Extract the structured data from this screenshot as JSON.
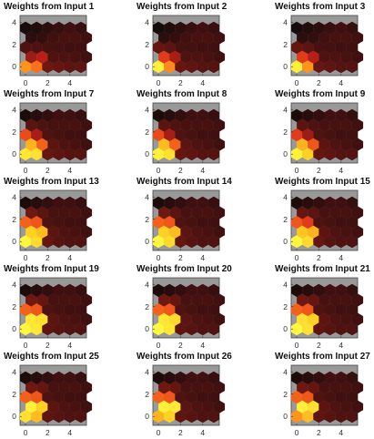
{
  "figure": {
    "background": "#ffffff",
    "plot_background": "#999999",
    "colormap": [
      "#0b0b0b",
      "#3a0f0f",
      "#7a1a12",
      "#d4201c",
      "#ff7a1a",
      "#ffcc22",
      "#ffff44"
    ]
  },
  "chart_data": [
    {
      "type": "heatmap",
      "grid": "hexagonal",
      "title": "Weights from Input 1",
      "x_ticks": [
        "0",
        "2",
        "4"
      ],
      "y_ticks": [
        "0",
        "2",
        "4"
      ],
      "xlim": [
        -0.5,
        5.5
      ],
      "ylim": [
        -0.8,
        4.6
      ],
      "values": [
        [
          0.72,
          0.65,
          0.3,
          0.28,
          0.25,
          0.26
        ],
        [
          0.4,
          0.45,
          0.22,
          0.22,
          0.2,
          0.18
        ],
        [
          0.22,
          0.22,
          0.2,
          0.19,
          0.18,
          0.18
        ],
        [
          0.12,
          0.14,
          0.18,
          0.2,
          0.2,
          0.18
        ],
        [
          0.04,
          0.08,
          0.12,
          0.16,
          0.18,
          0.16
        ]
      ]
    },
    {
      "type": "heatmap",
      "grid": "hexagonal",
      "title": "Weights from Input 2",
      "x_ticks": [
        "0",
        "2",
        "4"
      ],
      "y_ticks": [
        "0",
        "2",
        "4"
      ],
      "xlim": [
        -0.5,
        5.5
      ],
      "ylim": [
        -0.8,
        4.6
      ],
      "values": [
        [
          0.95,
          0.7,
          0.28,
          0.26,
          0.24,
          0.24
        ],
        [
          0.55,
          0.42,
          0.22,
          0.22,
          0.2,
          0.18
        ],
        [
          0.28,
          0.25,
          0.2,
          0.19,
          0.18,
          0.18
        ],
        [
          0.12,
          0.14,
          0.18,
          0.2,
          0.2,
          0.18
        ],
        [
          0.04,
          0.08,
          0.12,
          0.16,
          0.18,
          0.16
        ]
      ]
    },
    {
      "type": "heatmap",
      "grid": "hexagonal",
      "title": "Weights from Input 3",
      "x_ticks": [
        "0",
        "2",
        "4"
      ],
      "y_ticks": [
        "0",
        "2",
        "4"
      ],
      "xlim": [
        -0.5,
        5.5
      ],
      "ylim": [
        -0.8,
        4.6
      ],
      "values": [
        [
          0.95,
          0.72,
          0.28,
          0.26,
          0.24,
          0.24
        ],
        [
          0.55,
          0.45,
          0.22,
          0.22,
          0.2,
          0.18
        ],
        [
          0.28,
          0.25,
          0.2,
          0.19,
          0.18,
          0.18
        ],
        [
          0.12,
          0.14,
          0.18,
          0.2,
          0.2,
          0.18
        ],
        [
          0.04,
          0.08,
          0.12,
          0.16,
          0.18,
          0.16
        ]
      ]
    },
    {
      "type": "heatmap",
      "grid": "hexagonal",
      "title": "Weights from Input 7",
      "x_ticks": [
        "0",
        "2",
        "4"
      ],
      "y_ticks": [
        "0",
        "2",
        "4"
      ],
      "xlim": [
        -0.5,
        5.5
      ],
      "ylim": [
        -0.8,
        4.6
      ],
      "values": [
        [
          0.92,
          0.9,
          0.28,
          0.26,
          0.24,
          0.24
        ],
        [
          0.78,
          0.62,
          0.25,
          0.22,
          0.2,
          0.18
        ],
        [
          0.58,
          0.42,
          0.22,
          0.2,
          0.18,
          0.18
        ],
        [
          0.25,
          0.22,
          0.2,
          0.2,
          0.2,
          0.18
        ],
        [
          0.06,
          0.1,
          0.14,
          0.18,
          0.18,
          0.16
        ]
      ]
    },
    {
      "type": "heatmap",
      "grid": "hexagonal",
      "title": "Weights from Input 8",
      "x_ticks": [
        "0",
        "2",
        "4"
      ],
      "y_ticks": [
        "0",
        "2",
        "4"
      ],
      "xlim": [
        -0.5,
        5.5
      ],
      "ylim": [
        -0.8,
        4.6
      ],
      "values": [
        [
          0.95,
          0.9,
          0.28,
          0.26,
          0.24,
          0.24
        ],
        [
          0.8,
          0.62,
          0.25,
          0.22,
          0.2,
          0.18
        ],
        [
          0.58,
          0.42,
          0.22,
          0.2,
          0.18,
          0.18
        ],
        [
          0.25,
          0.22,
          0.2,
          0.2,
          0.2,
          0.18
        ],
        [
          0.06,
          0.1,
          0.14,
          0.18,
          0.18,
          0.16
        ]
      ]
    },
    {
      "type": "heatmap",
      "grid": "hexagonal",
      "title": "Weights from Input 9",
      "x_ticks": [
        "0",
        "2",
        "4"
      ],
      "y_ticks": [
        "0",
        "2",
        "4"
      ],
      "xlim": [
        -0.5,
        5.5
      ],
      "ylim": [
        -0.8,
        4.6
      ],
      "values": [
        [
          0.95,
          0.85,
          0.28,
          0.26,
          0.24,
          0.24
        ],
        [
          0.78,
          0.6,
          0.25,
          0.22,
          0.2,
          0.18
        ],
        [
          0.55,
          0.4,
          0.22,
          0.2,
          0.18,
          0.18
        ],
        [
          0.25,
          0.22,
          0.2,
          0.2,
          0.2,
          0.18
        ],
        [
          0.06,
          0.1,
          0.14,
          0.18,
          0.18,
          0.16
        ]
      ]
    },
    {
      "type": "heatmap",
      "grid": "hexagonal",
      "title": "Weights from Input 13",
      "x_ticks": [
        "0",
        "2",
        "4"
      ],
      "y_ticks": [
        "0",
        "2",
        "4"
      ],
      "xlim": [
        -0.5,
        5.5
      ],
      "ylim": [
        -0.8,
        4.6
      ],
      "values": [
        [
          0.97,
          0.88,
          0.28,
          0.24,
          0.22,
          0.22
        ],
        [
          0.85,
          0.8,
          0.25,
          0.22,
          0.2,
          0.18
        ],
        [
          0.62,
          0.6,
          0.22,
          0.2,
          0.18,
          0.18
        ],
        [
          0.3,
          0.25,
          0.2,
          0.2,
          0.2,
          0.18
        ],
        [
          0.06,
          0.1,
          0.14,
          0.18,
          0.18,
          0.16
        ]
      ]
    },
    {
      "type": "heatmap",
      "grid": "hexagonal",
      "title": "Weights from Input 14",
      "x_ticks": [
        "0",
        "2",
        "4"
      ],
      "y_ticks": [
        "0",
        "2",
        "4"
      ],
      "xlim": [
        -0.5,
        5.5
      ],
      "ylim": [
        -0.8,
        4.6
      ],
      "values": [
        [
          0.97,
          0.88,
          0.28,
          0.24,
          0.22,
          0.22
        ],
        [
          0.85,
          0.8,
          0.25,
          0.22,
          0.2,
          0.18
        ],
        [
          0.62,
          0.6,
          0.22,
          0.2,
          0.18,
          0.18
        ],
        [
          0.3,
          0.25,
          0.2,
          0.2,
          0.2,
          0.18
        ],
        [
          0.06,
          0.1,
          0.14,
          0.18,
          0.18,
          0.16
        ]
      ]
    },
    {
      "type": "heatmap",
      "grid": "hexagonal",
      "title": "Weights from Input 15",
      "x_ticks": [
        "0",
        "2",
        "4"
      ],
      "y_ticks": [
        "0",
        "2",
        "4"
      ],
      "xlim": [
        -0.5,
        5.5
      ],
      "ylim": [
        -0.8,
        4.6
      ],
      "values": [
        [
          0.97,
          0.88,
          0.28,
          0.24,
          0.22,
          0.22
        ],
        [
          0.82,
          0.78,
          0.25,
          0.22,
          0.2,
          0.18
        ],
        [
          0.6,
          0.55,
          0.22,
          0.2,
          0.18,
          0.18
        ],
        [
          0.28,
          0.25,
          0.2,
          0.2,
          0.2,
          0.18
        ],
        [
          0.06,
          0.1,
          0.14,
          0.18,
          0.18,
          0.16
        ]
      ]
    },
    {
      "type": "heatmap",
      "grid": "hexagonal",
      "title": "Weights from Input 19",
      "x_ticks": [
        "0",
        "2",
        "4"
      ],
      "y_ticks": [
        "0",
        "2",
        "4"
      ],
      "xlim": [
        -0.5,
        5.5
      ],
      "ylim": [
        -0.8,
        4.6
      ],
      "values": [
        [
          0.97,
          0.92,
          0.26,
          0.24,
          0.22,
          0.22
        ],
        [
          0.92,
          0.9,
          0.25,
          0.22,
          0.2,
          0.18
        ],
        [
          0.62,
          0.6,
          0.22,
          0.2,
          0.18,
          0.18
        ],
        [
          0.3,
          0.28,
          0.2,
          0.2,
          0.2,
          0.18
        ],
        [
          0.06,
          0.1,
          0.14,
          0.18,
          0.18,
          0.16
        ]
      ]
    },
    {
      "type": "heatmap",
      "grid": "hexagonal",
      "title": "Weights from Input 20",
      "x_ticks": [
        "0",
        "2",
        "4"
      ],
      "y_ticks": [
        "0",
        "2",
        "4"
      ],
      "xlim": [
        -0.5,
        5.5
      ],
      "ylim": [
        -0.8,
        4.6
      ],
      "values": [
        [
          0.97,
          0.92,
          0.26,
          0.24,
          0.22,
          0.22
        ],
        [
          0.92,
          0.88,
          0.25,
          0.22,
          0.2,
          0.18
        ],
        [
          0.62,
          0.6,
          0.22,
          0.2,
          0.18,
          0.18
        ],
        [
          0.3,
          0.28,
          0.2,
          0.2,
          0.2,
          0.18
        ],
        [
          0.06,
          0.1,
          0.14,
          0.18,
          0.18,
          0.16
        ]
      ]
    },
    {
      "type": "heatmap",
      "grid": "hexagonal",
      "title": "Weights from Input 21",
      "x_ticks": [
        "0",
        "2",
        "4"
      ],
      "y_ticks": [
        "0",
        "2",
        "4"
      ],
      "xlim": [
        -0.5,
        5.5
      ],
      "ylim": [
        -0.8,
        4.6
      ],
      "values": [
        [
          0.97,
          0.9,
          0.26,
          0.24,
          0.22,
          0.22
        ],
        [
          0.9,
          0.85,
          0.25,
          0.22,
          0.2,
          0.18
        ],
        [
          0.62,
          0.6,
          0.22,
          0.2,
          0.18,
          0.18
        ],
        [
          0.3,
          0.28,
          0.2,
          0.2,
          0.2,
          0.18
        ],
        [
          0.06,
          0.1,
          0.14,
          0.18,
          0.18,
          0.16
        ]
      ]
    },
    {
      "type": "heatmap",
      "grid": "hexagonal",
      "title": "Weights from Input 25",
      "x_ticks": [
        "0",
        "2",
        "4"
      ],
      "y_ticks": [
        "0",
        "2",
        "4"
      ],
      "xlim": [
        -0.5,
        5.5
      ],
      "ylim": [
        -0.8,
        4.6
      ],
      "values": [
        [
          0.9,
          0.8,
          0.26,
          0.24,
          0.22,
          0.22
        ],
        [
          0.95,
          0.85,
          0.25,
          0.22,
          0.2,
          0.18
        ],
        [
          0.62,
          0.6,
          0.22,
          0.2,
          0.18,
          0.18
        ],
        [
          0.3,
          0.28,
          0.2,
          0.2,
          0.2,
          0.18
        ],
        [
          0.06,
          0.1,
          0.14,
          0.18,
          0.18,
          0.16
        ]
      ]
    },
    {
      "type": "heatmap",
      "grid": "hexagonal",
      "title": "Weights from Input 26",
      "x_ticks": [
        "0",
        "2",
        "4"
      ],
      "y_ticks": [
        "0",
        "2",
        "4"
      ],
      "xlim": [
        -0.5,
        5.5
      ],
      "ylim": [
        -0.8,
        4.6
      ],
      "values": [
        [
          0.78,
          0.85,
          0.26,
          0.24,
          0.22,
          0.22
        ],
        [
          0.95,
          0.92,
          0.25,
          0.22,
          0.2,
          0.18
        ],
        [
          0.62,
          0.6,
          0.22,
          0.2,
          0.18,
          0.18
        ],
        [
          0.3,
          0.28,
          0.2,
          0.2,
          0.2,
          0.18
        ],
        [
          0.06,
          0.1,
          0.14,
          0.18,
          0.18,
          0.16
        ]
      ]
    },
    {
      "type": "heatmap",
      "grid": "hexagonal",
      "title": "Weights from Input 27",
      "x_ticks": [
        "0",
        "2",
        "4"
      ],
      "y_ticks": [
        "0",
        "2",
        "4"
      ],
      "xlim": [
        -0.5,
        5.5
      ],
      "ylim": [
        -0.8,
        4.6
      ],
      "values": [
        [
          0.72,
          0.8,
          0.26,
          0.24,
          0.22,
          0.22
        ],
        [
          0.95,
          0.9,
          0.25,
          0.22,
          0.2,
          0.18
        ],
        [
          0.62,
          0.6,
          0.22,
          0.2,
          0.18,
          0.18
        ],
        [
          0.3,
          0.28,
          0.2,
          0.2,
          0.2,
          0.18
        ],
        [
          0.06,
          0.1,
          0.14,
          0.18,
          0.18,
          0.16
        ]
      ]
    }
  ]
}
